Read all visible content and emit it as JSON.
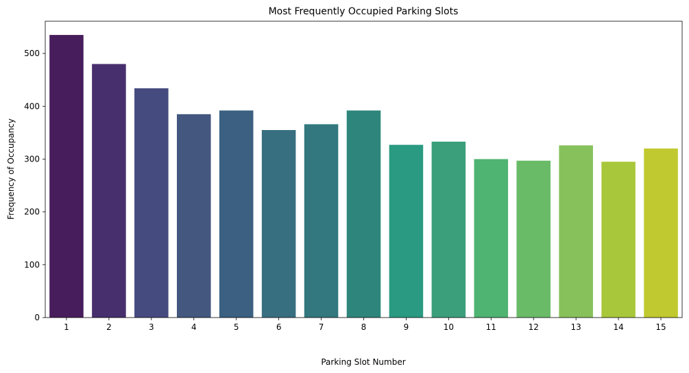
{
  "chart_data": {
    "type": "bar",
    "title": "Most Frequently Occupied Parking Slots",
    "xlabel": "Parking Slot Number",
    "ylabel": "Frequency of Occupancy",
    "categories": [
      "1",
      "2",
      "3",
      "4",
      "5",
      "6",
      "7",
      "8",
      "9",
      "10",
      "11",
      "12",
      "13",
      "14",
      "15"
    ],
    "values": [
      535,
      480,
      434,
      385,
      392,
      355,
      366,
      392,
      327,
      333,
      300,
      297,
      326,
      295,
      320
    ],
    "colors": [
      "#481d5c",
      "#472f6e",
      "#454a7f",
      "#43577f",
      "#3b6081",
      "#386f80",
      "#32787e",
      "#2e857b",
      "#2a9a82",
      "#3b9f7c",
      "#4fb371",
      "#6abb68",
      "#87c15b",
      "#a9c73a",
      "#c0c92f"
    ],
    "yticks": [
      0,
      100,
      200,
      300,
      400,
      500
    ],
    "ylim": [
      0,
      561
    ],
    "grid": false
  }
}
